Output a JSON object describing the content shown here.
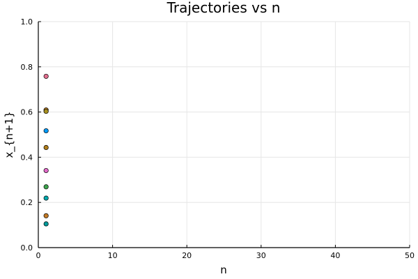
{
  "chart_data": {
    "type": "scatter",
    "title": "Trajectories vs n",
    "xlabel": "n",
    "ylabel": "x_{n+1}",
    "xlim": [
      0,
      50
    ],
    "ylim": [
      0,
      1
    ],
    "x_ticks": [
      0,
      10,
      20,
      30,
      40,
      50
    ],
    "y_ticks": [
      0.0,
      0.2,
      0.4,
      0.6,
      0.8,
      1.0
    ],
    "x_tick_labels": [
      "0",
      "10",
      "20",
      "30",
      "40",
      "50"
    ],
    "y_tick_labels": [
      "0.0",
      "0.2",
      "0.4",
      "0.6",
      "0.8",
      "1.0"
    ],
    "grid": true,
    "legend": "none",
    "points": [
      {
        "x": 1,
        "y": 0.758,
        "color": "#e26f8f"
      },
      {
        "x": 1,
        "y": 0.609,
        "color": "#c68125"
      },
      {
        "x": 1,
        "y": 0.603,
        "color": "#a89020"
      },
      {
        "x": 1,
        "y": 0.517,
        "color": "#009bfa"
      },
      {
        "x": 1,
        "y": 0.443,
        "color": "#b07e1c"
      },
      {
        "x": 1,
        "y": 0.341,
        "color": "#e16ac8"
      },
      {
        "x": 1,
        "y": 0.269,
        "color": "#3da44d"
      },
      {
        "x": 1,
        "y": 0.219,
        "color": "#00a9ad"
      },
      {
        "x": 1,
        "y": 0.141,
        "color": "#c37a26"
      },
      {
        "x": 1,
        "y": 0.105,
        "color": "#009a9a"
      }
    ]
  }
}
